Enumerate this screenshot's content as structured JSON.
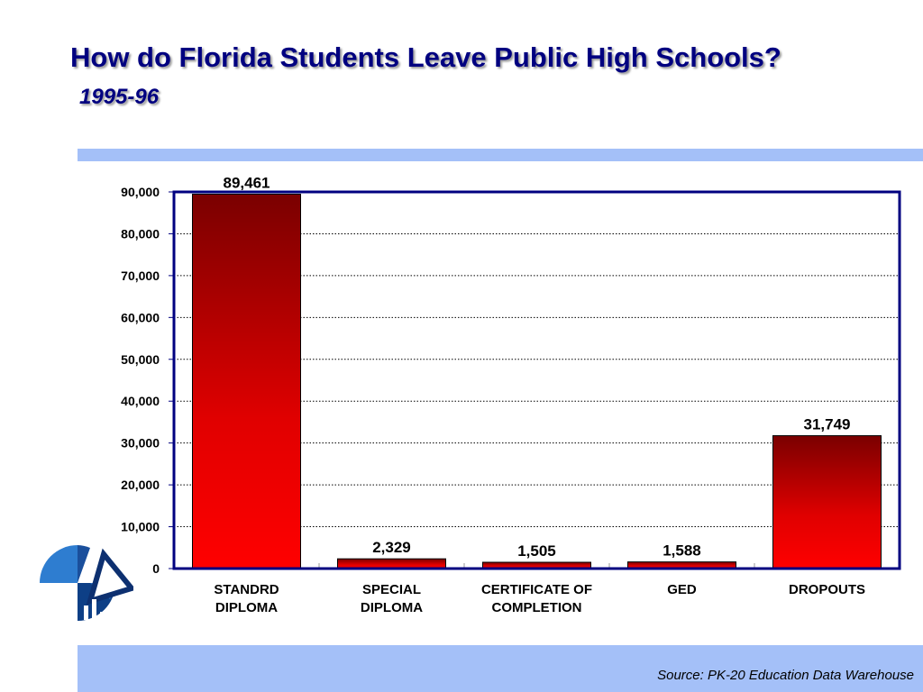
{
  "title": "How do Florida Students Leave Public High Schools?",
  "subtitle": "1995-96",
  "source": "Source:  PK-20 Education Data Warehouse",
  "colors": {
    "bar_top": "#7a0000",
    "bar_bottom": "#ff0000",
    "frame": "#000080",
    "band": "#a4c0f8"
  },
  "chart_data": {
    "type": "bar",
    "title": "",
    "xlabel": "",
    "ylabel": "",
    "ylim": [
      0,
      90000
    ],
    "yticks": [
      0,
      10000,
      20000,
      30000,
      40000,
      50000,
      60000,
      70000,
      80000,
      90000
    ],
    "ytick_labels": [
      "0",
      "10,000",
      "20,000",
      "30,000",
      "40,000",
      "50,000",
      "60,000",
      "70,000",
      "80,000",
      "90,000"
    ],
    "categories": [
      [
        "STANDRD",
        "DIPLOMA"
      ],
      [
        "SPECIAL",
        "DIPLOMA"
      ],
      [
        "CERTIFICATE OF",
        "COMPLETION"
      ],
      [
        "GED"
      ],
      [
        "DROPOUTS"
      ]
    ],
    "values": [
      89461,
      2329,
      1505,
      1588,
      31749
    ],
    "data_labels": [
      "89,461",
      "2,329",
      "1,505",
      "1,588",
      "31,749"
    ],
    "grid": "horizontal dotted",
    "legend": "none"
  }
}
